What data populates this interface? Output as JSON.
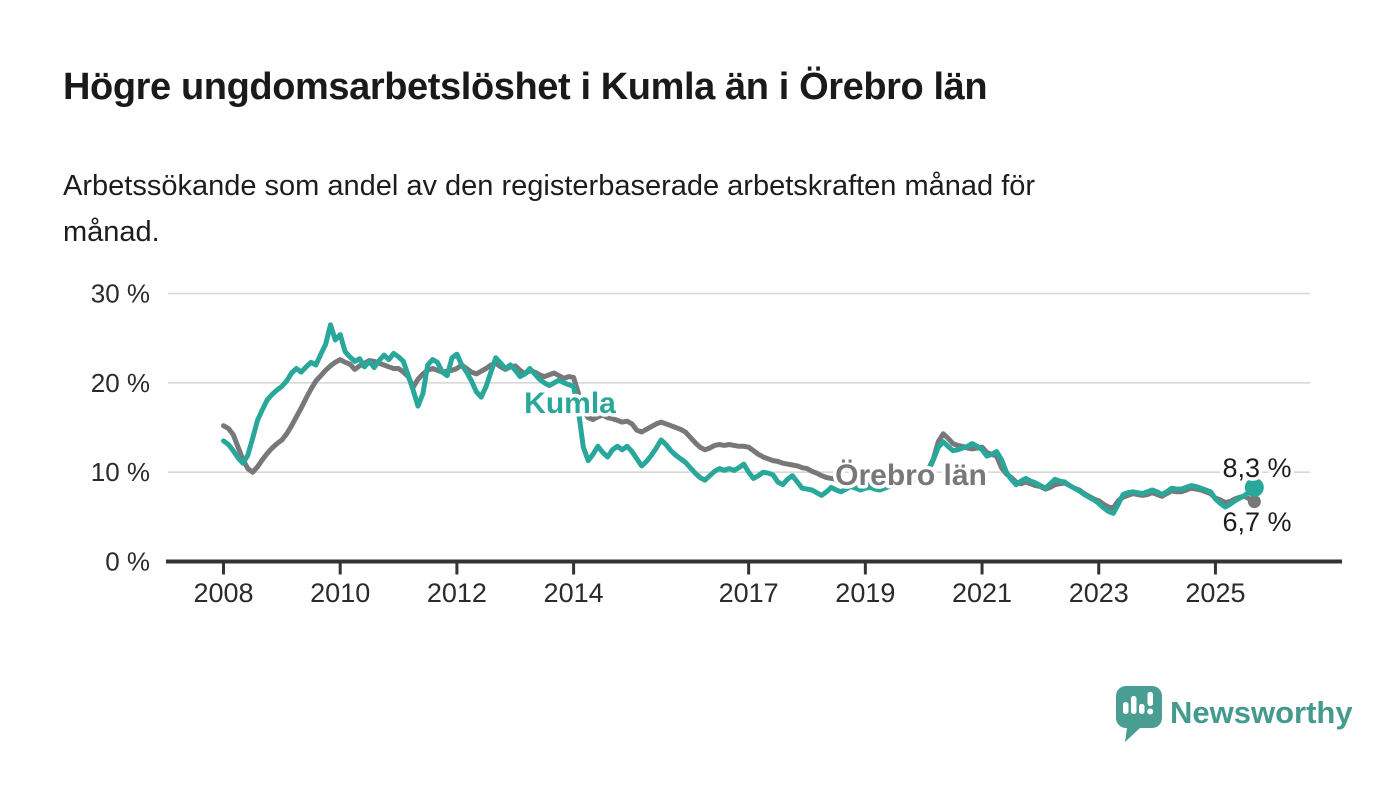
{
  "title": "Högre ungdomsarbetslöshet i Kumla än i Örebro län",
  "subtitle_lines": [
    "Arbetssökande som andel av den registerbaserade arbetskraften månad för",
    "månad."
  ],
  "branding": {
    "name": "Newsworthy",
    "brand_color": "#4a9d93"
  },
  "chart_data": {
    "type": "line",
    "title": "Högre ungdomsarbetslöshet i Kumla än i Örebro län",
    "subtitle": "Arbetssökande som andel av den registerbaserade arbetskraften månad för månad.",
    "unit": "% av registerbaserade arbetskraften",
    "frequency": "monthly",
    "start": {
      "year": 2008,
      "month": 1
    },
    "end": {
      "year": 2025,
      "month": 9
    },
    "grid": true,
    "legend_position": "inline-labels",
    "colors": {
      "grid": "#d8d8d8",
      "axis": "#333333",
      "tick_label": "#2b2b2b",
      "value_label": "#1d1d1d"
    },
    "y_axis": {
      "min": 0,
      "max": 30,
      "ticks": [
        {
          "value": 0,
          "label": "0 %"
        },
        {
          "value": 10,
          "label": "10 %"
        },
        {
          "value": 20,
          "label": "20 %"
        },
        {
          "value": 30,
          "label": "30 %"
        }
      ]
    },
    "x_axis": {
      "tick_years": [
        2008,
        2010,
        2012,
        2014,
        2017,
        2019,
        2021,
        2023,
        2025
      ],
      "tick_labels": [
        "2008",
        "2010",
        "2012",
        "2014",
        "2017",
        "2019",
        "2021",
        "2023",
        "2025"
      ]
    },
    "series": [
      {
        "name": "Kumla",
        "color": "#29a79b",
        "end_label": "8,3 %",
        "end_value": 8.3,
        "values": [
          13.5,
          13.1,
          12.4,
          11.6,
          11.0,
          11.9,
          13.8,
          15.8,
          17.0,
          18.1,
          18.7,
          19.2,
          19.6,
          20.2,
          21.1,
          21.6,
          21.2,
          21.8,
          22.3,
          22.0,
          23.2,
          24.3,
          26.5,
          24.8,
          25.4,
          23.5,
          22.9,
          22.4,
          22.7,
          21.8,
          22.4,
          21.7,
          22.5,
          23.1,
          22.6,
          23.3,
          22.9,
          22.4,
          20.8,
          19.2,
          17.4,
          18.8,
          22.0,
          22.6,
          22.3,
          21.2,
          20.8,
          22.8,
          23.2,
          22.0,
          21.2,
          20.2,
          19.0,
          18.4,
          19.6,
          21.2,
          22.8,
          22.2,
          21.6,
          22.0,
          21.4,
          20.7,
          21.0,
          21.6,
          21.0,
          20.4,
          20.0,
          19.7,
          20.0,
          20.3,
          20.0,
          19.8,
          19.6,
          16.8,
          12.8,
          11.3,
          12.0,
          12.9,
          12.2,
          11.7,
          12.5,
          12.9,
          12.5,
          12.9,
          12.3,
          11.5,
          10.7,
          11.2,
          11.9,
          12.7,
          13.6,
          13.1,
          12.4,
          11.9,
          11.5,
          11.1,
          10.5,
          9.9,
          9.4,
          9.1,
          9.6,
          10.1,
          10.4,
          10.2,
          10.4,
          10.2,
          10.5,
          10.9,
          10.0,
          9.3,
          9.6,
          10.0,
          9.9,
          9.7,
          8.9,
          8.6,
          9.2,
          9.6,
          8.9,
          8.2,
          8.1,
          8.0,
          7.7,
          7.4,
          7.8,
          8.3,
          8.0,
          7.8,
          8.1,
          8.4,
          8.2,
          8.0,
          8.2,
          8.3,
          8.1,
          8.0,
          8.2,
          8.4,
          8.6,
          8.7,
          8.8,
          9.0,
          9.1,
          9.3,
          9.7,
          10.2,
          11.4,
          12.8,
          13.4,
          12.9,
          12.4,
          12.5,
          12.7,
          12.9,
          13.2,
          12.9,
          12.5,
          11.8,
          12.0,
          12.3,
          11.4,
          10.0,
          9.2,
          8.6,
          9.0,
          9.3,
          9.0,
          8.8,
          8.5,
          8.2,
          8.7,
          9.2,
          9.0,
          8.9,
          8.5,
          8.2,
          7.9,
          7.5,
          7.2,
          6.9,
          6.5,
          6.0,
          5.6,
          5.4,
          6.4,
          7.5,
          7.7,
          7.8,
          7.7,
          7.6,
          7.8,
          8.0,
          7.8,
          7.5,
          7.8,
          8.2,
          8.1,
          8.1,
          8.3,
          8.5,
          8.4,
          8.2,
          8.0,
          7.8,
          7.0,
          6.5,
          6.1,
          6.4,
          6.8,
          7.1,
          7.4,
          7.8,
          8.3
        ]
      },
      {
        "name": "Örebro län",
        "color": "#77787a",
        "end_label": "6,7 %",
        "end_value": 6.7,
        "values": [
          15.2,
          14.9,
          14.2,
          12.8,
          11.4,
          10.4,
          10.0,
          10.6,
          11.4,
          12.1,
          12.7,
          13.2,
          13.6,
          14.3,
          15.2,
          16.2,
          17.2,
          18.3,
          19.3,
          20.2,
          20.8,
          21.4,
          21.9,
          22.3,
          22.6,
          22.3,
          22.1,
          21.5,
          21.9,
          22.2,
          22.5,
          22.4,
          22.2,
          22.0,
          21.8,
          21.6,
          21.6,
          21.2,
          20.7,
          19.5,
          20.4,
          21.0,
          21.4,
          21.6,
          21.4,
          21.2,
          21.3,
          21.4,
          21.6,
          22.0,
          21.6,
          21.2,
          21.0,
          21.3,
          21.6,
          22.0,
          22.2,
          21.8,
          21.5,
          21.8,
          21.9,
          21.4,
          21.0,
          21.4,
          21.2,
          20.9,
          20.7,
          20.9,
          21.1,
          20.8,
          20.5,
          20.7,
          20.6,
          18.8,
          16.8,
          16.1,
          15.9,
          16.2,
          16.4,
          16.1,
          16.0,
          15.8,
          15.6,
          15.7,
          15.4,
          14.7,
          14.5,
          14.8,
          15.1,
          15.4,
          15.6,
          15.4,
          15.2,
          15.0,
          14.8,
          14.5,
          13.9,
          13.3,
          12.8,
          12.5,
          12.7,
          13.0,
          13.1,
          13.0,
          13.1,
          13.0,
          12.9,
          12.9,
          12.8,
          12.4,
          12.0,
          11.7,
          11.5,
          11.3,
          11.2,
          11.0,
          10.9,
          10.8,
          10.7,
          10.5,
          10.4,
          10.1,
          9.9,
          9.6,
          9.4,
          9.3,
          9.2,
          9.1,
          9.0,
          8.9,
          8.8,
          8.7,
          8.7,
          8.6,
          8.5,
          8.4,
          8.4,
          8.5,
          8.5,
          8.6,
          8.8,
          9.0,
          9.2,
          9.5,
          9.8,
          10.4,
          11.5,
          13.4,
          14.3,
          13.8,
          13.2,
          13.0,
          12.9,
          12.7,
          12.6,
          12.7,
          12.8,
          12.2,
          12.0,
          11.8,
          10.5,
          9.8,
          9.4,
          8.9,
          8.7,
          8.9,
          8.7,
          8.5,
          8.4,
          8.1,
          8.3,
          8.6,
          8.7,
          8.8,
          8.5,
          8.2,
          8.0,
          7.6,
          7.3,
          7.0,
          6.8,
          6.4,
          6.1,
          6.0,
          6.8,
          7.2,
          7.4,
          7.6,
          7.5,
          7.4,
          7.5,
          7.7,
          7.5,
          7.3,
          7.6,
          7.9,
          7.8,
          7.8,
          8.0,
          8.2,
          8.1,
          8.0,
          7.8,
          7.6,
          7.1,
          6.9,
          6.6,
          6.7,
          7.0,
          7.2,
          7.3,
          7.0,
          6.7
        ]
      }
    ]
  }
}
